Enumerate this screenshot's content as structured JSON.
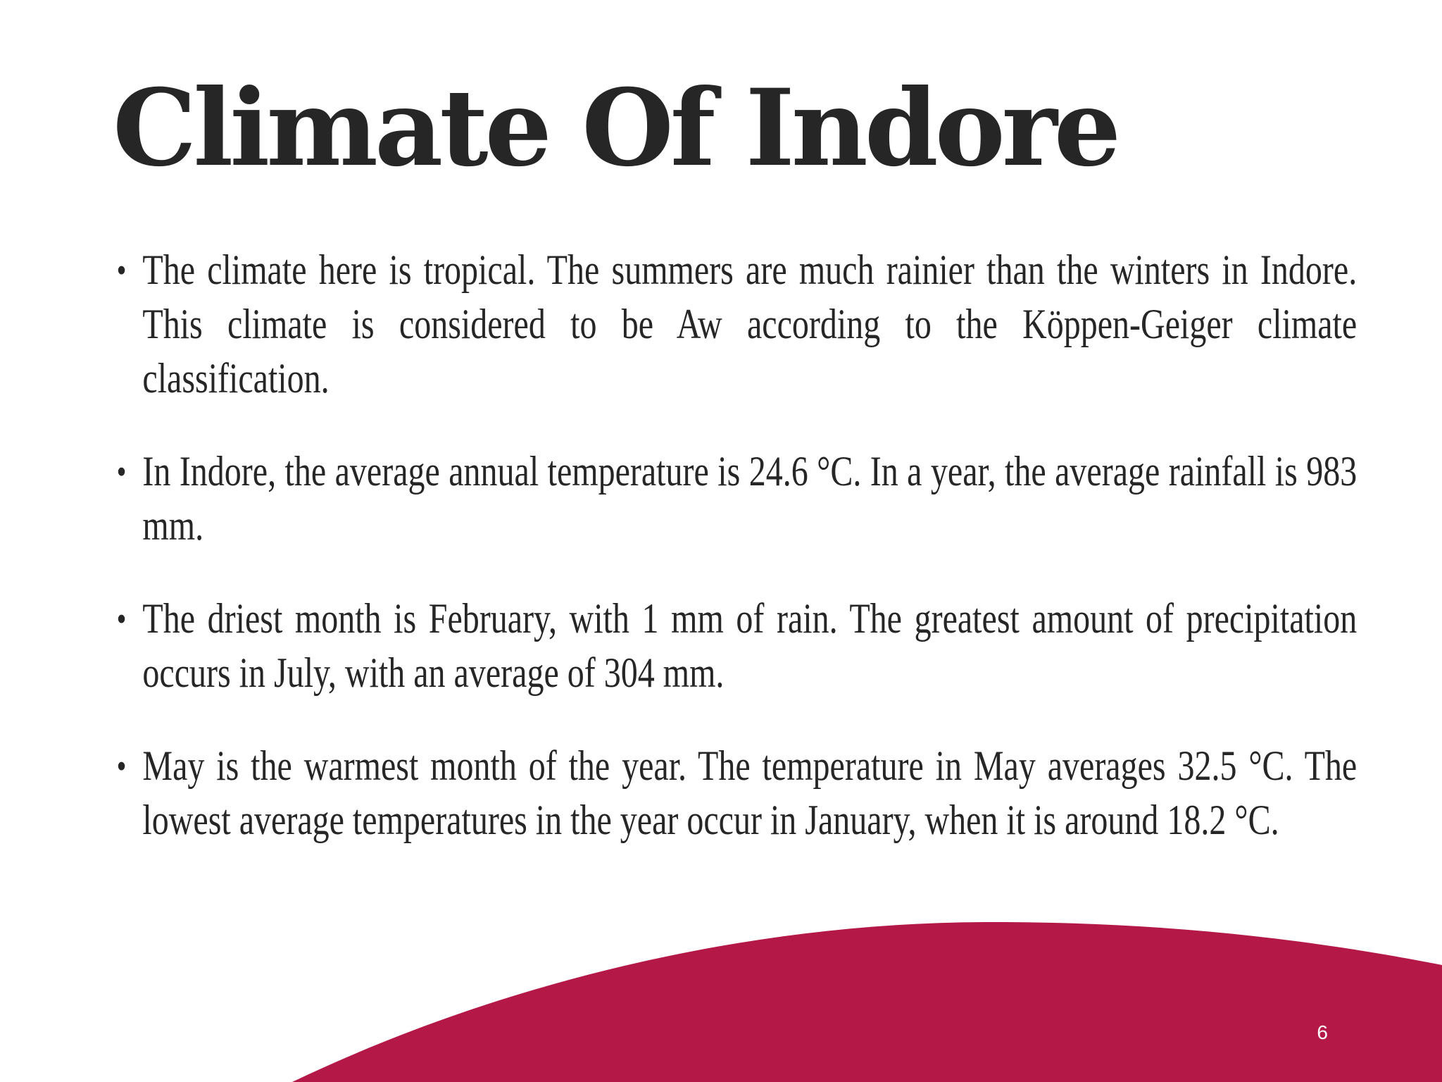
{
  "slide": {
    "title": "Climate Of Indore",
    "bullets": [
      {
        "text": "The climate here is tropical. The summers are much rainier than the winters in Indore. This climate is considered to be Aw according to the Köppen-Geiger climate classification."
      },
      {
        "text": "In Indore, the average annual temperature is 24.6 °C. In a year, the average rainfall is 983 mm."
      },
      {
        "text": "The driest month is February, with 1 mm of rain. The greatest amount of precipitation occurs in July, with an average of 304 mm."
      },
      {
        "text": "May is the warmest month of the year. The temperature in May averages 32.5 °C. The lowest average temperatures in the year occur in January, when it is around 18.2 °C."
      }
    ],
    "bullet_symbol": "•",
    "page_number": "6",
    "accent_color": "#b41846",
    "text_color": "#262626"
  }
}
